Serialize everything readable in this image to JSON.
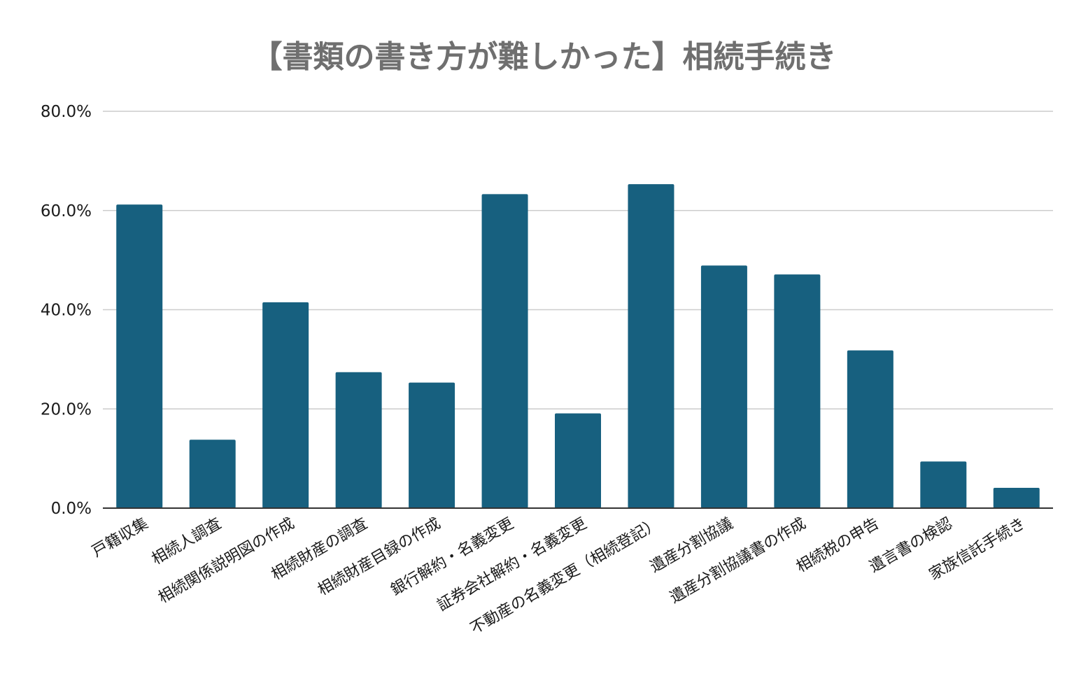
{
  "chart_data": {
    "type": "bar",
    "title": "【書類の書き方が難しかった】相続手続き",
    "xlabel": "",
    "ylabel": "",
    "ylim": [
      0,
      80
    ],
    "yticks": [
      "0.0%",
      "20.0%",
      "40.0%",
      "60.0%",
      "80.0%"
    ],
    "ytick_values": [
      0,
      20,
      40,
      60,
      80
    ],
    "grid": true,
    "legend": "none",
    "bar_color": "#17607f",
    "categories": [
      "戸籍収集",
      "相続人調査",
      "相続関係説明図の作成",
      "相続財産の調査",
      "相続財産目録の作成",
      "銀行解約・名義変更",
      "証券会社解約・名義変更",
      "不動産の名義変更（相続登記）",
      "遺産分割協議",
      "遺産分割協議書の作成",
      "相続税の申告",
      "遺言書の検認",
      "家族信託手続き"
    ],
    "values": [
      61.2,
      13.8,
      41.5,
      27.4,
      25.3,
      63.3,
      19.1,
      65.3,
      48.9,
      47.1,
      31.8,
      9.4,
      4.1
    ]
  }
}
